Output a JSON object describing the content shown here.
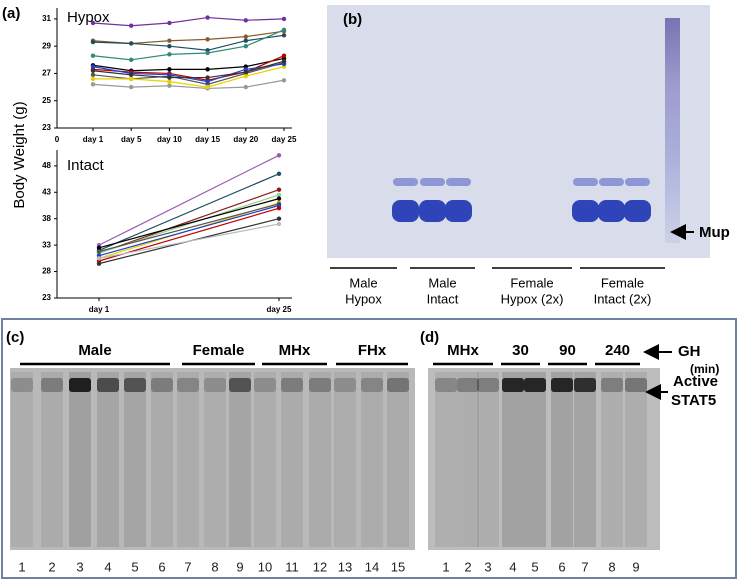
{
  "chart_data": [
    {
      "type": "line",
      "title": "Hypox",
      "x_origin_label": "0",
      "categories": [
        "day 1",
        "day 5",
        "day 10",
        "day 15",
        "day 20",
        "day 25"
      ],
      "ylim": [
        23,
        31.8
      ],
      "yticks": [
        23,
        25,
        27,
        29,
        31
      ],
      "series": [
        {
          "color": "#7030a0",
          "values": [
            30.7,
            30.5,
            30.7,
            31.1,
            30.9,
            31.0
          ]
        },
        {
          "color": "#8b5a2b",
          "values": [
            29.4,
            29.2,
            29.4,
            29.5,
            29.7,
            30.1
          ]
        },
        {
          "color": "#1f4e5f",
          "values": [
            29.3,
            29.2,
            29.0,
            28.7,
            29.4,
            29.8
          ]
        },
        {
          "color": "#2e8b7a",
          "values": [
            28.3,
            28.0,
            28.4,
            28.5,
            29.0,
            30.2
          ]
        },
        {
          "color": "#000000",
          "values": [
            27.6,
            27.2,
            27.3,
            27.3,
            27.5,
            28.1
          ]
        },
        {
          "color": "#555555",
          "values": [
            26.9,
            26.6,
            26.8,
            26.2,
            27.0,
            27.8
          ]
        },
        {
          "color": "#999999",
          "values": [
            26.2,
            26.0,
            26.1,
            25.9,
            26.0,
            26.5
          ]
        },
        {
          "color": "#c00000",
          "values": [
            27.3,
            27.1,
            27.0,
            26.5,
            27.1,
            28.3
          ]
        },
        {
          "color": "#e6d200",
          "values": [
            26.6,
            26.6,
            26.4,
            26.0,
            26.8,
            27.5
          ]
        },
        {
          "color": "#1f3fcc",
          "values": [
            27.5,
            27.0,
            26.9,
            26.4,
            27.3,
            27.7
          ]
        },
        {
          "color": "#333333",
          "values": [
            27.2,
            26.9,
            26.7,
            26.7,
            27.1,
            27.9
          ]
        }
      ]
    },
    {
      "type": "line",
      "title": "Intact",
      "categories": [
        "day 1",
        "day 25"
      ],
      "ylim": [
        23,
        51
      ],
      "yticks": [
        23,
        28,
        33,
        38,
        43,
        48
      ],
      "series": [
        {
          "color": "#9b59b6",
          "values": [
            33,
            50
          ]
        },
        {
          "color": "#1f4e5f",
          "values": [
            32,
            46.5
          ]
        },
        {
          "color": "#8b1a1a",
          "values": [
            31.5,
            43.5
          ]
        },
        {
          "color": "#8fd18f",
          "values": [
            31.5,
            42.5
          ]
        },
        {
          "color": "#000000",
          "values": [
            32.5,
            41.8
          ]
        },
        {
          "color": "#e6d200",
          "values": [
            30.5,
            41
          ]
        },
        {
          "color": "#555555",
          "values": [
            31.8,
            40.8
          ]
        },
        {
          "color": "#1f3fcc",
          "values": [
            31,
            40.5
          ]
        },
        {
          "color": "#c00000",
          "values": [
            30,
            40
          ]
        },
        {
          "color": "#333333",
          "values": [
            29.5,
            38
          ]
        },
        {
          "color": "#bbbbbb",
          "values": [
            30.5,
            37
          ]
        }
      ]
    }
  ],
  "panel_a": {
    "label": "(a)",
    "ylabel": "Body Weight (g)"
  },
  "panel_b": {
    "label": "(b)",
    "band": "Mup",
    "groups": [
      [
        "Male",
        "Hypox"
      ],
      [
        "Male",
        "Intact"
      ],
      [
        "Female",
        "Hypox (2x)"
      ],
      [
        "Female",
        "Intact (2x)"
      ]
    ]
  },
  "panel_c": {
    "label": "(c)",
    "groups": [
      "Male",
      "Female",
      "MHx",
      "FHx"
    ],
    "lanes": [
      "1",
      "2",
      "3",
      "4",
      "5",
      "6",
      "7",
      "8",
      "9",
      "10",
      "11",
      "12",
      "13",
      "14",
      "15"
    ]
  },
  "panel_d": {
    "label": "(d)",
    "groups": [
      "MHx",
      "30",
      "90",
      "240"
    ],
    "treatment": [
      "GH",
      "(min)"
    ],
    "band": [
      "Active",
      "STAT5"
    ],
    "lanes": [
      "1",
      "2",
      "3",
      "4",
      "5",
      "6",
      "7",
      "8",
      "9"
    ]
  }
}
